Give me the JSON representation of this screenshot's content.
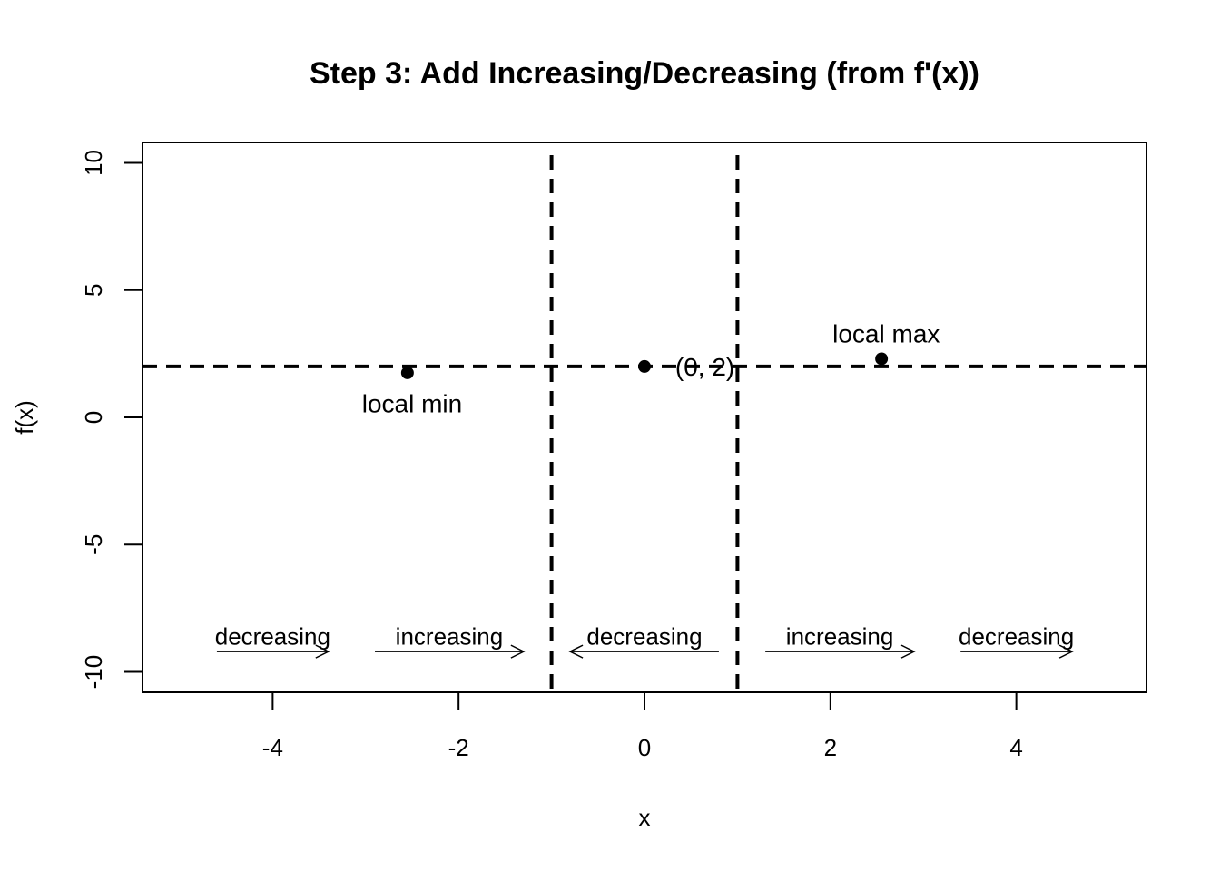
{
  "chart_data": {
    "type": "scatter",
    "title": "Step 3: Add Increasing/Decreasing (from f'(x))",
    "xlabel": "x",
    "ylabel": "f(x)",
    "xlim": [
      -5.4,
      5.4
    ],
    "ylim": [
      -10.8,
      10.8
    ],
    "x_ticks": [
      -4,
      -2,
      0,
      2,
      4
    ],
    "x_tick_labels": [
      "-4",
      "-2",
      "0",
      "2",
      "4"
    ],
    "y_ticks": [
      -10,
      -5,
      0,
      5,
      10
    ],
    "y_tick_labels": [
      "-10",
      "-5",
      "0",
      "5",
      "10"
    ],
    "grid": false,
    "points": [
      {
        "x": -2.55,
        "y": 1.75
      },
      {
        "x": 0,
        "y": 2
      },
      {
        "x": 2.55,
        "y": 2.3
      }
    ],
    "point_labels": [
      {
        "text": "local min",
        "x": -2.5,
        "y": 0.55
      },
      {
        "text": "(0, 2)",
        "x": 0.65,
        "y": 2
      },
      {
        "text": "local max",
        "x": 2.6,
        "y": 3.3
      }
    ],
    "reference_lines": {
      "vertical": [
        -1,
        1
      ],
      "horizontal": [
        2
      ]
    },
    "regions": [
      {
        "label": "decreasing",
        "label_x": -4,
        "arrow_from": -4.6,
        "arrow_to": -3.4,
        "y": -9.2,
        "label_y": -8.6
      },
      {
        "label": "increasing",
        "label_x": -2.1,
        "arrow_from": -2.9,
        "arrow_to": -1.3,
        "y": -9.2,
        "label_y": -8.6
      },
      {
        "label": "decreasing",
        "label_x": 0,
        "arrow_from": 0.8,
        "arrow_to": -0.8,
        "y": -9.2,
        "label_y": -8.6
      },
      {
        "label": "increasing",
        "label_x": 2.1,
        "arrow_from": 1.3,
        "arrow_to": 2.9,
        "y": -9.2,
        "label_y": -8.6
      },
      {
        "label": "decreasing",
        "label_x": 4,
        "arrow_from": 3.4,
        "arrow_to": 4.6,
        "y": -9.2,
        "label_y": -8.6
      }
    ]
  }
}
